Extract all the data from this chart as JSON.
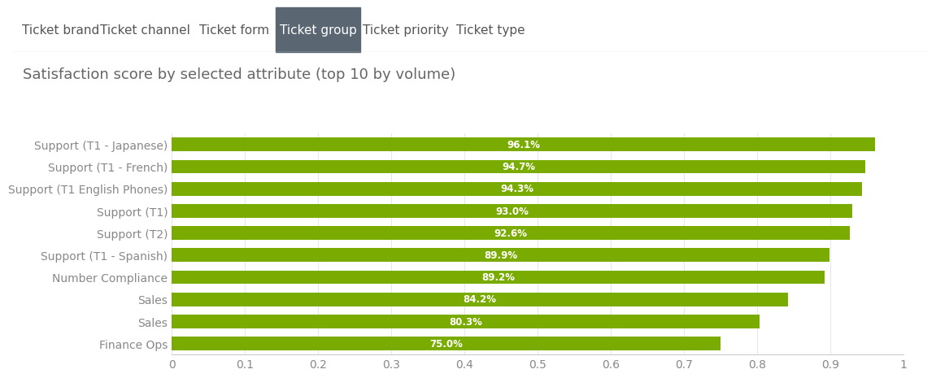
{
  "title": "Satisfaction score by selected attribute (top 10 by volume)",
  "categories": [
    "Support (T1 - Japanese)",
    "Support (T1 - French)",
    "Support (T1 English Phones)",
    "Support (T1)",
    "Support (T2)",
    "Support (T1 - Spanish)",
    "Number Compliance",
    "Sales",
    "Sales",
    "Finance Ops"
  ],
  "values": [
    0.961,
    0.947,
    0.943,
    0.93,
    0.926,
    0.899,
    0.892,
    0.842,
    0.803,
    0.75
  ],
  "labels": [
    "96.1%",
    "94.7%",
    "94.3%",
    "93.0%",
    "92.6%",
    "89.9%",
    "89.2%",
    "84.2%",
    "80.3%",
    "75.0%"
  ],
  "bar_color": "#7aab00",
  "label_color": "#ffffff",
  "title_color": "#666666",
  "axis_color": "#cccccc",
  "tick_color": "#888888",
  "background_color": "#ffffff",
  "tab_bar_bg": "#f0f0f0",
  "tab_border_color": "#dddddd",
  "tabs": [
    "Ticket brand",
    "Ticket channel",
    "Ticket form",
    "Ticket group",
    "Ticket priority",
    "Ticket type"
  ],
  "active_tab": "Ticket group",
  "active_tab_color": "#5a6672",
  "active_tab_text_color": "#ffffff",
  "inactive_tab_text_color": "#555555",
  "xlim": [
    0,
    1
  ],
  "xticks": [
    0,
    0.1,
    0.2,
    0.3,
    0.4,
    0.5,
    0.6,
    0.7,
    0.8,
    0.9,
    1
  ],
  "xtick_labels": [
    "0",
    "0.1",
    "0.2",
    "0.3",
    "0.4",
    "0.5",
    "0.6",
    "0.7",
    "0.8",
    "0.9",
    "1"
  ],
  "bar_height": 0.62,
  "label_fontsize": 8.5,
  "title_fontsize": 13,
  "ytick_fontsize": 10,
  "xtick_fontsize": 10,
  "tab_fontsize": 11
}
